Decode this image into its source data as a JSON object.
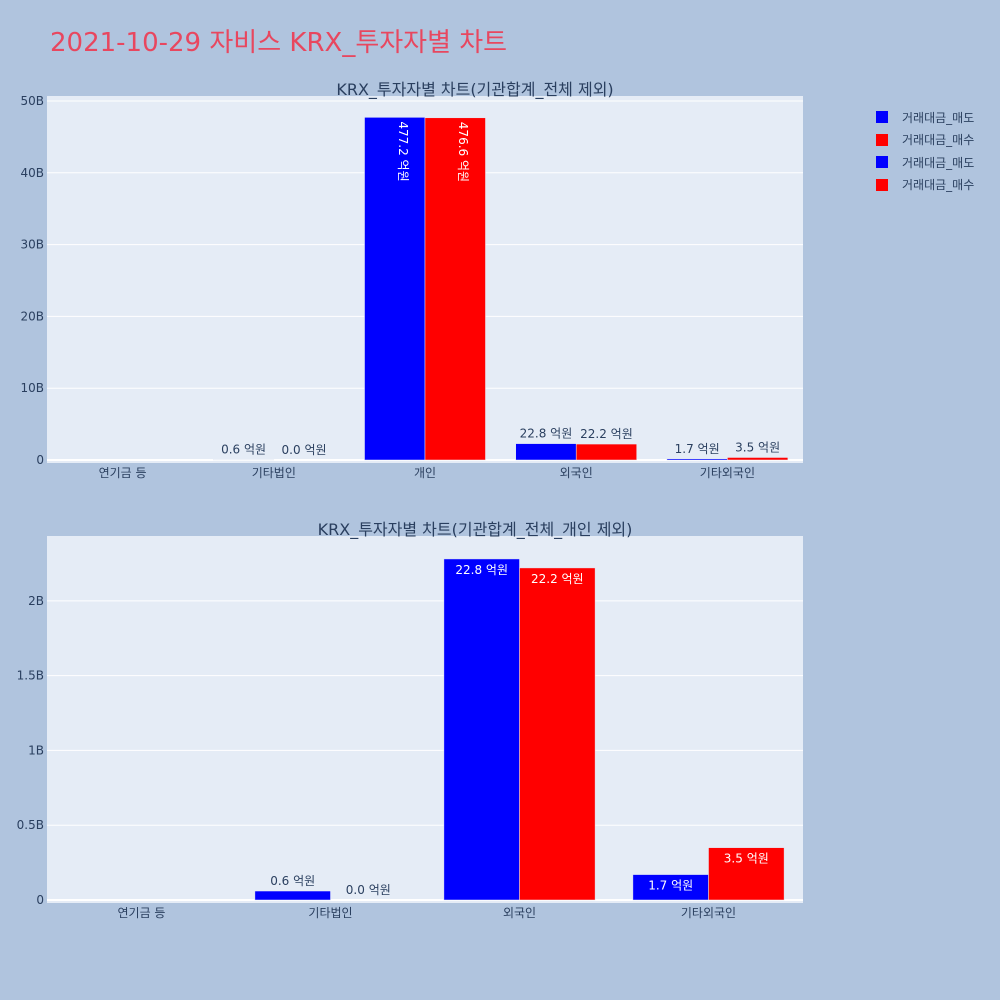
{
  "title": "2021-10-29 자비스 KRX_투자자별 차트",
  "legend": [
    {
      "label": "거래대금_매도",
      "color": "#0000ff"
    },
    {
      "label": "거래대금_매수",
      "color": "#ff0000"
    },
    {
      "label": "거래대금_매도",
      "color": "#0000ff"
    },
    {
      "label": "거래대금_매수",
      "color": "#ff0000"
    }
  ],
  "chart_data": [
    {
      "type": "bar",
      "title": "KRX_투자자별 차트(기관합계_전체 제외)",
      "categories": [
        "연기금 등",
        "기타법인",
        "개인",
        "외국인",
        "기타외국인"
      ],
      "ylim": [
        0,
        50000000000
      ],
      "yticks": [
        0,
        10000000000,
        20000000000,
        30000000000,
        40000000000,
        50000000000
      ],
      "ytick_labels": [
        "0",
        "10B",
        "20B",
        "30B",
        "40B",
        "50B"
      ],
      "series": [
        {
          "name": "거래대금_매도",
          "color": "#0000ff",
          "values": [
            0,
            60000000,
            47720000000,
            2280000000,
            170000000
          ],
          "labels": [
            "",
            "0.6 억원",
            "477.2 억원",
            "22.8 억원",
            "1.7 억원"
          ]
        },
        {
          "name": "거래대금_매수",
          "color": "#ff0000",
          "values": [
            0,
            0,
            47660000000,
            2220000000,
            350000000
          ],
          "labels": [
            "",
            "0.0 억원",
            "476.6 억원",
            "22.2 억원",
            "3.5 억원"
          ]
        }
      ]
    },
    {
      "type": "bar",
      "title": "KRX_투자자별 차트(기관합계_전체_개인 제외)",
      "categories": [
        "연기금 등",
        "기타법인",
        "외국인",
        "기타외국인"
      ],
      "ylim": [
        0,
        2400000000
      ],
      "yticks": [
        0,
        500000000,
        1000000000,
        1500000000,
        2000000000
      ],
      "ytick_labels": [
        "0",
        "0.5B",
        "1B",
        "1.5B",
        "2B"
      ],
      "series": [
        {
          "name": "거래대금_매도",
          "color": "#0000ff",
          "values": [
            0,
            60000000,
            2280000000,
            170000000
          ],
          "labels": [
            "",
            "0.6 억원",
            "22.8 억원",
            "1.7 억원"
          ]
        },
        {
          "name": "거래대금_매수",
          "color": "#ff0000",
          "values": [
            0,
            0,
            2220000000,
            350000000
          ],
          "labels": [
            "",
            "0.0 억원",
            "22.2 억원",
            "3.5 억원"
          ]
        }
      ]
    }
  ]
}
